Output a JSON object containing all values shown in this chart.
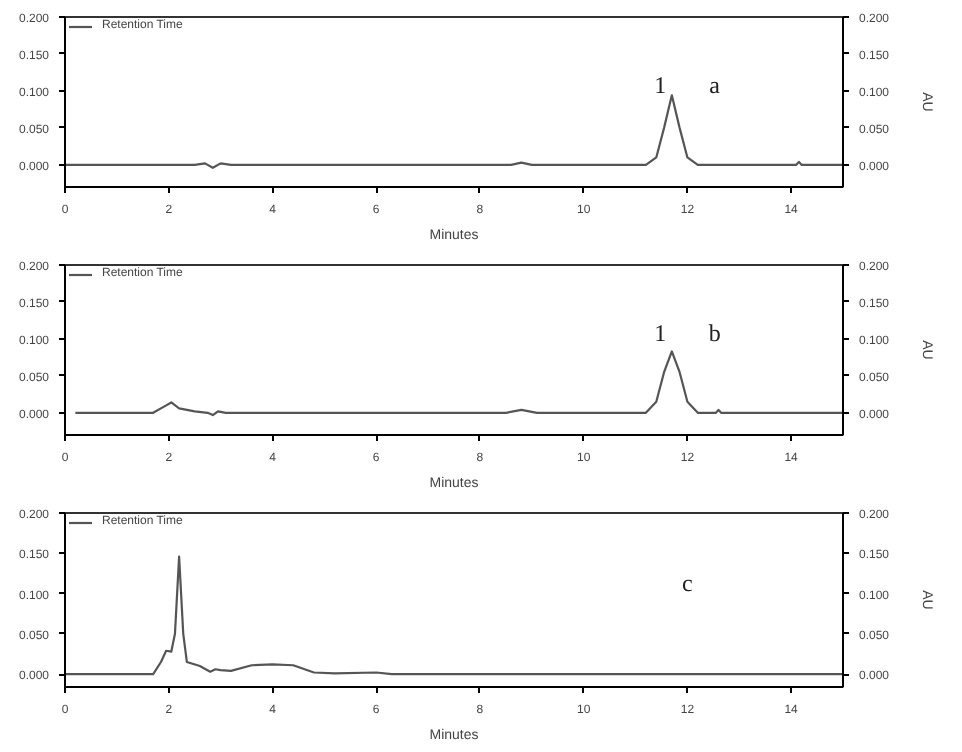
{
  "chart_data": [
    {
      "type": "line",
      "xlabel": "Minutes",
      "y2label": "AU",
      "legend": "top left",
      "grid": false,
      "xlim": [
        0,
        15
      ],
      "xticks": [
        0,
        2,
        4,
        6,
        8,
        10,
        12,
        14
      ],
      "ylim": [
        -0.03,
        0.2
      ],
      "yticks": [
        {
          "value": 0,
          "label": "0.000"
        },
        {
          "value": 0.05,
          "label": "0.050"
        },
        {
          "value": 0.1,
          "label": "0.100"
        },
        {
          "value": 0.15,
          "label": "0.150"
        },
        {
          "value": 0.2,
          "label": "0.200"
        }
      ],
      "y2lim": [
        -0.03,
        0.2
      ],
      "y2ticks": [
        {
          "value": 0,
          "label": "0.000"
        },
        {
          "value": 0.05,
          "label": "0.050"
        },
        {
          "value": 0.1,
          "label": "0.100"
        },
        {
          "value": 0.15,
          "label": "0.150"
        },
        {
          "value": 0.2,
          "label": "0.200"
        }
      ],
      "series": [
        {
          "name": "Retention Time",
          "color": "#555555",
          "x": [
            0,
            2.5,
            2.7,
            2.85,
            3.0,
            3.2,
            8.6,
            8.8,
            9.0,
            11.2,
            11.4,
            11.55,
            11.7,
            11.85,
            12.0,
            12.2,
            14.1,
            14.15,
            14.2,
            15
          ],
          "values": [
            0,
            0,
            0.002,
            -0.004,
            0.002,
            0,
            0,
            0.003,
            0,
            0,
            0.01,
            0.05,
            0.094,
            0.05,
            0.01,
            0,
            0,
            0.004,
            0,
            0
          ]
        }
      ],
      "annotations": [
        "1",
        "a"
      ]
    },
    {
      "type": "line",
      "xlabel": "Minutes",
      "y2label": "AU",
      "legend": "top left",
      "grid": false,
      "xlim": [
        0,
        15
      ],
      "xticks": [
        0,
        2,
        4,
        6,
        8,
        10,
        12,
        14
      ],
      "ylim": [
        -0.03,
        0.2
      ],
      "yticks": [
        {
          "value": 0,
          "label": "0.000"
        },
        {
          "value": 0.05,
          "label": "0.050"
        },
        {
          "value": 0.1,
          "label": "0.100"
        },
        {
          "value": 0.15,
          "label": "0.150"
        },
        {
          "value": 0.2,
          "label": "0.200"
        }
      ],
      "y2lim": [
        -0.03,
        0.2
      ],
      "y2ticks": [
        {
          "value": 0,
          "label": "0.000"
        },
        {
          "value": 0.05,
          "label": "0.050"
        },
        {
          "value": 0.1,
          "label": "0.100"
        },
        {
          "value": 0.15,
          "label": "0.150"
        },
        {
          "value": 0.2,
          "label": "0.200"
        }
      ],
      "series": [
        {
          "name": "Retention Time",
          "color": "#555555",
          "x": [
            0.2,
            1.7,
            1.9,
            2.05,
            2.2,
            2.5,
            2.75,
            2.85,
            2.95,
            3.1,
            8.5,
            8.8,
            9.1,
            11.2,
            11.4,
            11.55,
            11.7,
            11.85,
            12.0,
            12.2,
            12.55,
            12.6,
            12.65,
            15
          ],
          "values": [
            0,
            0,
            0.008,
            0.014,
            0.006,
            0.002,
            0,
            -0.003,
            0.002,
            0,
            0,
            0.004,
            0,
            0,
            0.015,
            0.055,
            0.083,
            0.055,
            0.015,
            0,
            0,
            0.004,
            0,
            0
          ]
        }
      ],
      "annotations": [
        "1",
        "b"
      ]
    },
    {
      "type": "line",
      "xlabel": "Minutes",
      "y2label": "AU",
      "legend": "top left",
      "grid": false,
      "xlim": [
        0,
        15
      ],
      "xticks": [
        0,
        2,
        4,
        6,
        8,
        10,
        12,
        14
      ],
      "ylim": [
        -0.016,
        0.2
      ],
      "yticks": [
        {
          "value": 0,
          "label": "0.000"
        },
        {
          "value": 0.05,
          "label": "0.050"
        },
        {
          "value": 0.1,
          "label": "0.100"
        },
        {
          "value": 0.15,
          "label": "0.150"
        },
        {
          "value": 0.2,
          "label": "0.200"
        }
      ],
      "y2lim": [
        -0.016,
        0.2
      ],
      "y2ticks": [
        {
          "value": 0,
          "label": "0.000"
        },
        {
          "value": 0.05,
          "label": "0.050"
        },
        {
          "value": 0.1,
          "label": "0.100"
        },
        {
          "value": 0.15,
          "label": "0.150"
        },
        {
          "value": 0.2,
          "label": "0.200"
        }
      ],
      "series": [
        {
          "name": "Retention Time",
          "color": "#555555",
          "x": [
            0,
            1.7,
            1.85,
            1.95,
            2.05,
            2.12,
            2.2,
            2.28,
            2.35,
            2.6,
            2.8,
            2.9,
            3.0,
            3.2,
            3.6,
            4.0,
            4.4,
            4.8,
            5.2,
            6.0,
            6.3,
            15
          ],
          "values": [
            0,
            0,
            0.015,
            0.029,
            0.028,
            0.05,
            0.146,
            0.05,
            0.015,
            0.01,
            0.003,
            0.006,
            0.005,
            0.004,
            0.011,
            0.012,
            0.011,
            0.002,
            0.001,
            0.002,
            0,
            0
          ]
        }
      ],
      "annotations": [
        "c"
      ]
    }
  ]
}
